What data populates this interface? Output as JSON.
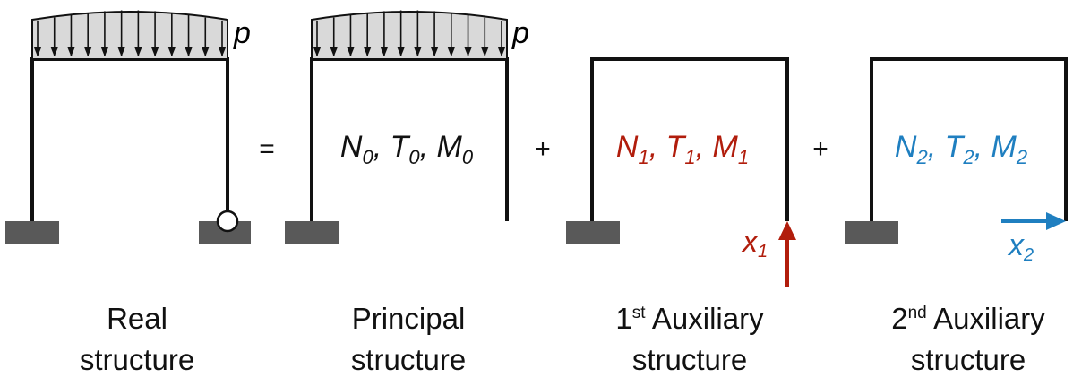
{
  "colors": {
    "frame": "#111111",
    "ground": "#595959",
    "load_fill": "#d9d9d9",
    "redundant_1": "#b11d0c",
    "redundant_2": "#1f7fc0"
  },
  "load_label": "p",
  "operators": {
    "equals": "=",
    "plus_1": "+",
    "plus_2": "+"
  },
  "principal_forces": "N0, T0, M0",
  "aux1_forces": "N1, T1, M1",
  "aux2_forces": "N2, T2, M2",
  "redundants": {
    "x1": "x1",
    "x2": "x2"
  },
  "captions": {
    "real": {
      "line1": "Real",
      "line2": "structure"
    },
    "principal": {
      "line1": "Principal",
      "line2": "structure"
    },
    "aux1": {
      "num": "1",
      "sup": "st",
      "line1_rest": " Auxiliary",
      "line2": "structure"
    },
    "aux2": {
      "num": "2",
      "sup": "nd",
      "line1_rest": " Auxiliary",
      "line2": "structure"
    }
  }
}
